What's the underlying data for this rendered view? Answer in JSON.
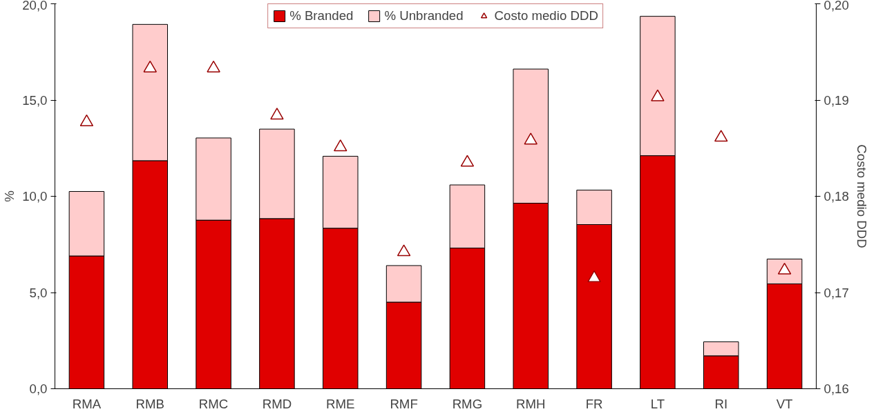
{
  "chart_data": {
    "type": "bar",
    "stacked": true,
    "categories": [
      "RMA",
      "RMB",
      "RMC",
      "RMD",
      "RME",
      "RMF",
      "RMG",
      "RMH",
      "FR",
      "LT",
      "RI",
      "VT"
    ],
    "series": [
      {
        "name": "% Branded",
        "color": "#e00000",
        "values": [
          6.9,
          11.85,
          8.76,
          8.84,
          8.34,
          4.5,
          7.31,
          9.64,
          8.53,
          12.11,
          1.71,
          5.45
        ]
      },
      {
        "name": "% Unbranded",
        "color": "#ffcccc",
        "values": [
          3.35,
          7.08,
          4.27,
          4.65,
          3.74,
          1.9,
          3.28,
          6.97,
          1.79,
          7.24,
          0.73,
          1.29
        ]
      },
      {
        "name": "Costo medio DDD",
        "type": "scatter",
        "axis": "y2",
        "marker": "triangle",
        "color": "#990000",
        "values": [
          0.1877,
          0.1933,
          0.1933,
          0.1884,
          0.1851,
          0.1742,
          0.1835,
          0.1858,
          0.1715,
          0.1903,
          0.1861,
          0.1723
        ]
      }
    ],
    "ylabel": "%",
    "y2label": "Costo medio DDD",
    "ylim": [
      0,
      20
    ],
    "yticks": [
      {
        "value": 0,
        "label": "0,0"
      },
      {
        "value": 5,
        "label": "5,0"
      },
      {
        "value": 10,
        "label": "10,0"
      },
      {
        "value": 15,
        "label": "15,0"
      },
      {
        "value": 20,
        "label": "20,0"
      }
    ],
    "y2lim": [
      0.16,
      0.2
    ],
    "y2ticks": [
      {
        "value": 0.16,
        "label": "0,16"
      },
      {
        "value": 0.17,
        "label": "0,17"
      },
      {
        "value": 0.18,
        "label": "0,18"
      },
      {
        "value": 0.19,
        "label": "0,19"
      },
      {
        "value": 0.2,
        "label": "0,20"
      }
    ],
    "legend": "top",
    "grid": false
  }
}
